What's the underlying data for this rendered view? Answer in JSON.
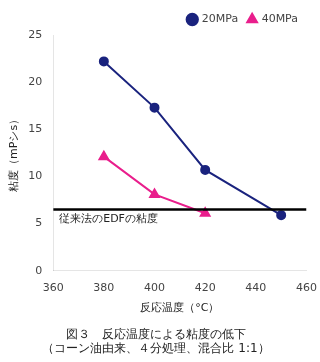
{
  "chart_data": {
    "type": "line",
    "title": "図３　反応温度による粘度の低下",
    "subtitle": "（コーン油由来、４分処理、混合比 1:1）",
    "x_label": "反応温度（°C）",
    "y_label": "粘度（mPシs）",
    "series": [
      {
        "name": "20MPa",
        "color": "#1a237e",
        "marker": "circle",
        "x": [
          380,
          400,
          420,
          450
        ],
        "values": [
          22.2,
          17.3,
          10.7,
          5.9
        ]
      },
      {
        "name": "40MPa",
        "color": "#e91e8c",
        "marker": "triangle",
        "x": [
          380,
          400,
          420
        ],
        "values": [
          12.1,
          8.1,
          6.1
        ]
      }
    ],
    "annotations": [
      {
        "type": "hline",
        "y": 6.5,
        "color": "#000000",
        "text": "従来法のEDFの粘度"
      }
    ],
    "xlim": [
      360,
      460
    ],
    "xticks": [
      360,
      380,
      400,
      420,
      440,
      460
    ],
    "ylim": [
      0,
      25
    ],
    "yticks": [
      0,
      5,
      10,
      15,
      20,
      25
    ],
    "grid": false,
    "legend": "upper right"
  }
}
